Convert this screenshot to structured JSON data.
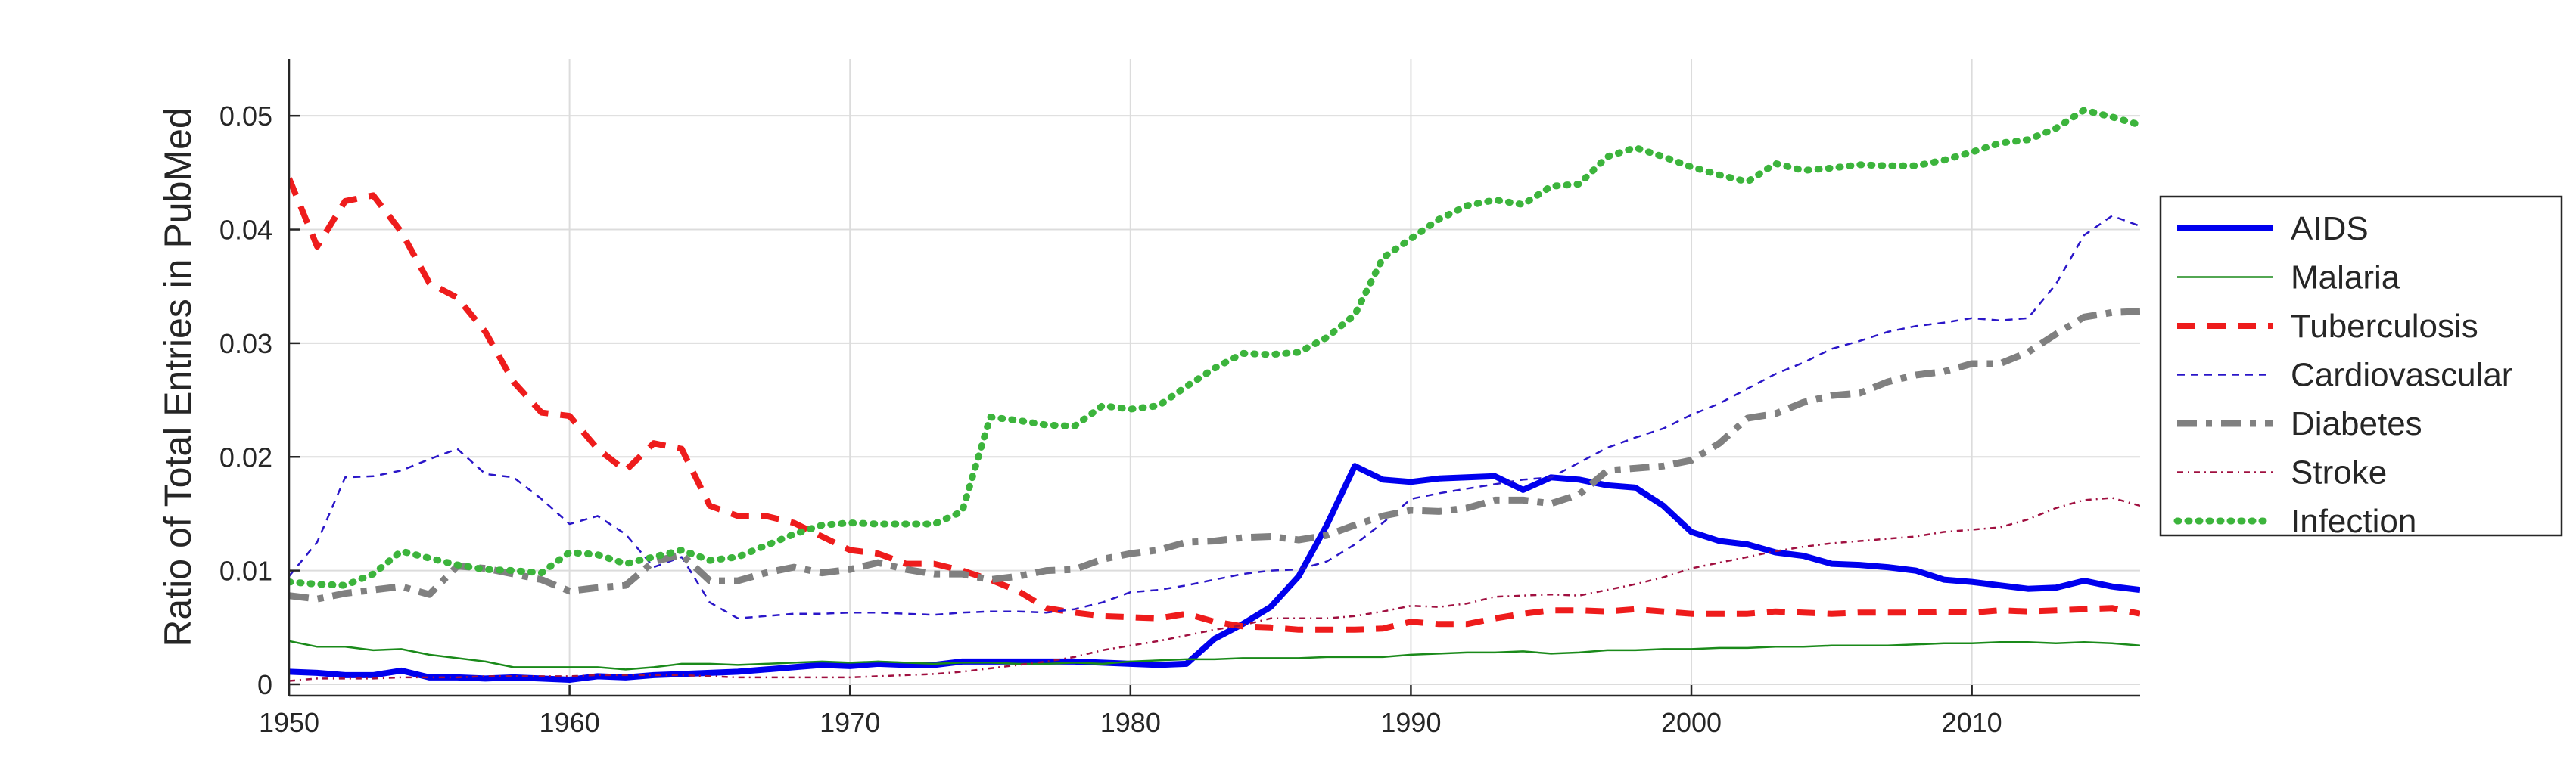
{
  "chart_data": {
    "type": "line",
    "xlabel": "",
    "ylabel": "Ratio of Total Entries in PubMed",
    "xlim": [
      1950,
      2016
    ],
    "ylim": [
      -0.001,
      0.055
    ],
    "xticks": [
      1950,
      1960,
      1970,
      1980,
      1990,
      2000,
      2010
    ],
    "yticks": [
      0,
      0.01,
      0.02,
      0.03,
      0.04,
      0.05
    ],
    "xtick_labels": [
      "1950",
      "1960",
      "1970",
      "1980",
      "1990",
      "2000",
      "2010"
    ],
    "ytick_labels": [
      "0",
      "0.01",
      "0.02",
      "0.03",
      "0.04",
      "0.05"
    ],
    "grid": true,
    "legend_position": "right",
    "x": [
      1950,
      1951,
      1952,
      1953,
      1954,
      1955,
      1956,
      1957,
      1958,
      1959,
      1960,
      1961,
      1962,
      1963,
      1964,
      1965,
      1966,
      1967,
      1968,
      1969,
      1970,
      1971,
      1972,
      1973,
      1974,
      1975,
      1976,
      1977,
      1978,
      1979,
      1980,
      1981,
      1982,
      1983,
      1984,
      1985,
      1986,
      1987,
      1988,
      1989,
      1990,
      1991,
      1992,
      1993,
      1994,
      1995,
      1996,
      1997,
      1998,
      1999,
      2000,
      2001,
      2002,
      2003,
      2004,
      2005,
      2006,
      2007,
      2008,
      2009,
      2010,
      2011,
      2012,
      2013,
      2014,
      2015,
      2016
    ],
    "series": [
      {
        "name": "AIDS",
        "color": "#0000ee",
        "style": "solid-thick",
        "values": [
          0.0011,
          0.001,
          0.0008,
          0.0008,
          0.0012,
          0.0006,
          0.0006,
          0.0005,
          0.0006,
          0.0005,
          0.0004,
          0.0007,
          0.0006,
          0.0008,
          0.0009,
          0.001,
          0.0011,
          0.0013,
          0.0015,
          0.0017,
          0.0016,
          0.0018,
          0.0017,
          0.0017,
          0.002,
          0.002,
          0.002,
          0.002,
          0.002,
          0.0019,
          0.0018,
          0.0017,
          0.0018,
          0.004,
          0.0053,
          0.0068,
          0.0095,
          0.014,
          0.0192,
          0.018,
          0.0178,
          0.0181,
          0.0182,
          0.0183,
          0.0171,
          0.0182,
          0.018,
          0.0175,
          0.0173,
          0.0157,
          0.0134,
          0.0126,
          0.0123,
          0.0116,
          0.0113,
          0.0106,
          0.0105,
          0.0103,
          0.01,
          0.0092,
          0.009,
          0.0087,
          0.0084,
          0.0085,
          0.0091,
          0.0086,
          0.0083
        ]
      },
      {
        "name": "Malaria",
        "color": "#1a8a1a",
        "style": "solid-thin",
        "values": [
          0.0038,
          0.0033,
          0.0033,
          0.003,
          0.0031,
          0.0026,
          0.0023,
          0.002,
          0.0015,
          0.0015,
          0.0015,
          0.0015,
          0.0013,
          0.0015,
          0.0018,
          0.0018,
          0.0017,
          0.0018,
          0.0019,
          0.002,
          0.0019,
          0.002,
          0.0019,
          0.0018,
          0.0019,
          0.0019,
          0.0018,
          0.0018,
          0.0019,
          0.0018,
          0.002,
          0.0021,
          0.0022,
          0.0022,
          0.0023,
          0.0023,
          0.0023,
          0.0024,
          0.0024,
          0.0024,
          0.0026,
          0.0027,
          0.0028,
          0.0028,
          0.0029,
          0.0027,
          0.0028,
          0.003,
          0.003,
          0.0031,
          0.0031,
          0.0032,
          0.0032,
          0.0033,
          0.0033,
          0.0034,
          0.0034,
          0.0034,
          0.0035,
          0.0036,
          0.0036,
          0.0037,
          0.0037,
          0.0036,
          0.0037,
          0.0036,
          0.0034
        ]
      },
      {
        "name": "Tuberculosis",
        "color": "#ee1c1c",
        "style": "dashed-thick",
        "values": [
          0.0445,
          0.0385,
          0.0425,
          0.043,
          0.0398,
          0.0353,
          0.034,
          0.031,
          0.0266,
          0.0239,
          0.0236,
          0.0207,
          0.0188,
          0.0212,
          0.0207,
          0.0157,
          0.0148,
          0.0148,
          0.0142,
          0.013,
          0.0118,
          0.0115,
          0.0106,
          0.0106,
          0.01,
          0.0092,
          0.0082,
          0.0067,
          0.0063,
          0.006,
          0.0059,
          0.0058,
          0.0062,
          0.0055,
          0.0051,
          0.005,
          0.0048,
          0.0048,
          0.0048,
          0.0049,
          0.0055,
          0.0053,
          0.0053,
          0.0058,
          0.0062,
          0.0065,
          0.0065,
          0.0064,
          0.0066,
          0.0064,
          0.0062,
          0.0062,
          0.0062,
          0.0064,
          0.0063,
          0.0062,
          0.0063,
          0.0063,
          0.0063,
          0.0064,
          0.0063,
          0.0065,
          0.0064,
          0.0065,
          0.0066,
          0.0067,
          0.0062
        ]
      },
      {
        "name": "Cardiovascular",
        "color": "#2a16c8",
        "style": "dashed-thin",
        "values": [
          0.0095,
          0.0125,
          0.0182,
          0.0183,
          0.0188,
          0.0198,
          0.0207,
          0.0185,
          0.0182,
          0.0163,
          0.0141,
          0.0148,
          0.0132,
          0.0103,
          0.0112,
          0.0072,
          0.0058,
          0.006,
          0.0062,
          0.0062,
          0.0063,
          0.0063,
          0.0062,
          0.0061,
          0.0063,
          0.0064,
          0.0064,
          0.0063,
          0.0066,
          0.0072,
          0.0081,
          0.0083,
          0.0087,
          0.0092,
          0.0097,
          0.01,
          0.0101,
          0.0108,
          0.0123,
          0.0142,
          0.0163,
          0.0168,
          0.0172,
          0.0176,
          0.018,
          0.0182,
          0.0195,
          0.0208,
          0.0217,
          0.0225,
          0.0237,
          0.0247,
          0.026,
          0.0273,
          0.0283,
          0.0295,
          0.0302,
          0.031,
          0.0315,
          0.0318,
          0.0322,
          0.032,
          0.0322,
          0.0352,
          0.0395,
          0.0412,
          0.0403
        ]
      },
      {
        "name": "Diabetes",
        "color": "#808080",
        "style": "dashdot-thick",
        "values": [
          0.0078,
          0.0075,
          0.008,
          0.0083,
          0.0086,
          0.0079,
          0.0104,
          0.0102,
          0.0097,
          0.0092,
          0.0082,
          0.0085,
          0.0087,
          0.0108,
          0.0114,
          0.0091,
          0.0091,
          0.0098,
          0.0103,
          0.0098,
          0.0101,
          0.0107,
          0.0101,
          0.0097,
          0.0097,
          0.0092,
          0.0095,
          0.01,
          0.0101,
          0.011,
          0.0115,
          0.0118,
          0.0125,
          0.0126,
          0.0129,
          0.013,
          0.0127,
          0.0131,
          0.014,
          0.0148,
          0.0153,
          0.0152,
          0.0155,
          0.0162,
          0.0162,
          0.0159,
          0.0167,
          0.0188,
          0.019,
          0.0192,
          0.0197,
          0.0212,
          0.0234,
          0.0238,
          0.0248,
          0.0254,
          0.0256,
          0.0266,
          0.0272,
          0.0275,
          0.0282,
          0.0282,
          0.0292,
          0.0308,
          0.0323,
          0.0327,
          0.0328
        ]
      },
      {
        "name": "Stroke",
        "color": "#a01040",
        "style": "dashdot-thin",
        "values": [
          0.0003,
          0.0005,
          0.0005,
          0.0005,
          0.0006,
          0.0006,
          0.0006,
          0.0007,
          0.0007,
          0.0007,
          0.0007,
          0.0008,
          0.0008,
          0.0008,
          0.0008,
          0.0007,
          0.0006,
          0.0006,
          0.0006,
          0.0006,
          0.0006,
          0.0007,
          0.0008,
          0.0009,
          0.0011,
          0.0014,
          0.0017,
          0.002,
          0.0024,
          0.003,
          0.0034,
          0.0038,
          0.0043,
          0.0048,
          0.0052,
          0.0058,
          0.0058,
          0.0058,
          0.006,
          0.0064,
          0.0069,
          0.0068,
          0.0071,
          0.0077,
          0.0078,
          0.0079,
          0.0078,
          0.0083,
          0.0088,
          0.0094,
          0.0102,
          0.0107,
          0.0112,
          0.0117,
          0.0121,
          0.0124,
          0.0126,
          0.0128,
          0.013,
          0.0134,
          0.0136,
          0.0138,
          0.0145,
          0.0155,
          0.0162,
          0.0164,
          0.0157
        ]
      },
      {
        "name": "Infection",
        "color": "#3cb43c",
        "style": "dotted-thick",
        "values": [
          0.009,
          0.0088,
          0.0087,
          0.0097,
          0.0117,
          0.0111,
          0.0105,
          0.0101,
          0.01,
          0.0098,
          0.0116,
          0.0114,
          0.0106,
          0.0112,
          0.0118,
          0.0109,
          0.0112,
          0.0122,
          0.0132,
          0.014,
          0.0142,
          0.0141,
          0.0141,
          0.0141,
          0.0152,
          0.0235,
          0.0232,
          0.0228,
          0.0227,
          0.0245,
          0.0242,
          0.0245,
          0.0262,
          0.0278,
          0.0291,
          0.029,
          0.0292,
          0.0305,
          0.0325,
          0.0375,
          0.0392,
          0.0409,
          0.0421,
          0.0426,
          0.0422,
          0.0438,
          0.044,
          0.0464,
          0.0472,
          0.0464,
          0.0455,
          0.0448,
          0.0442,
          0.0458,
          0.0452,
          0.0454,
          0.0457,
          0.0456,
          0.0456,
          0.0461,
          0.0468,
          0.0476,
          0.0479,
          0.0489,
          0.0505,
          0.0499,
          0.0492
        ]
      }
    ]
  }
}
